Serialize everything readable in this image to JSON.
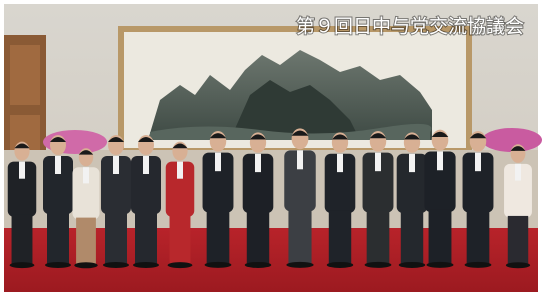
{
  "caption": "第９回日中与党交流協議会"
}
